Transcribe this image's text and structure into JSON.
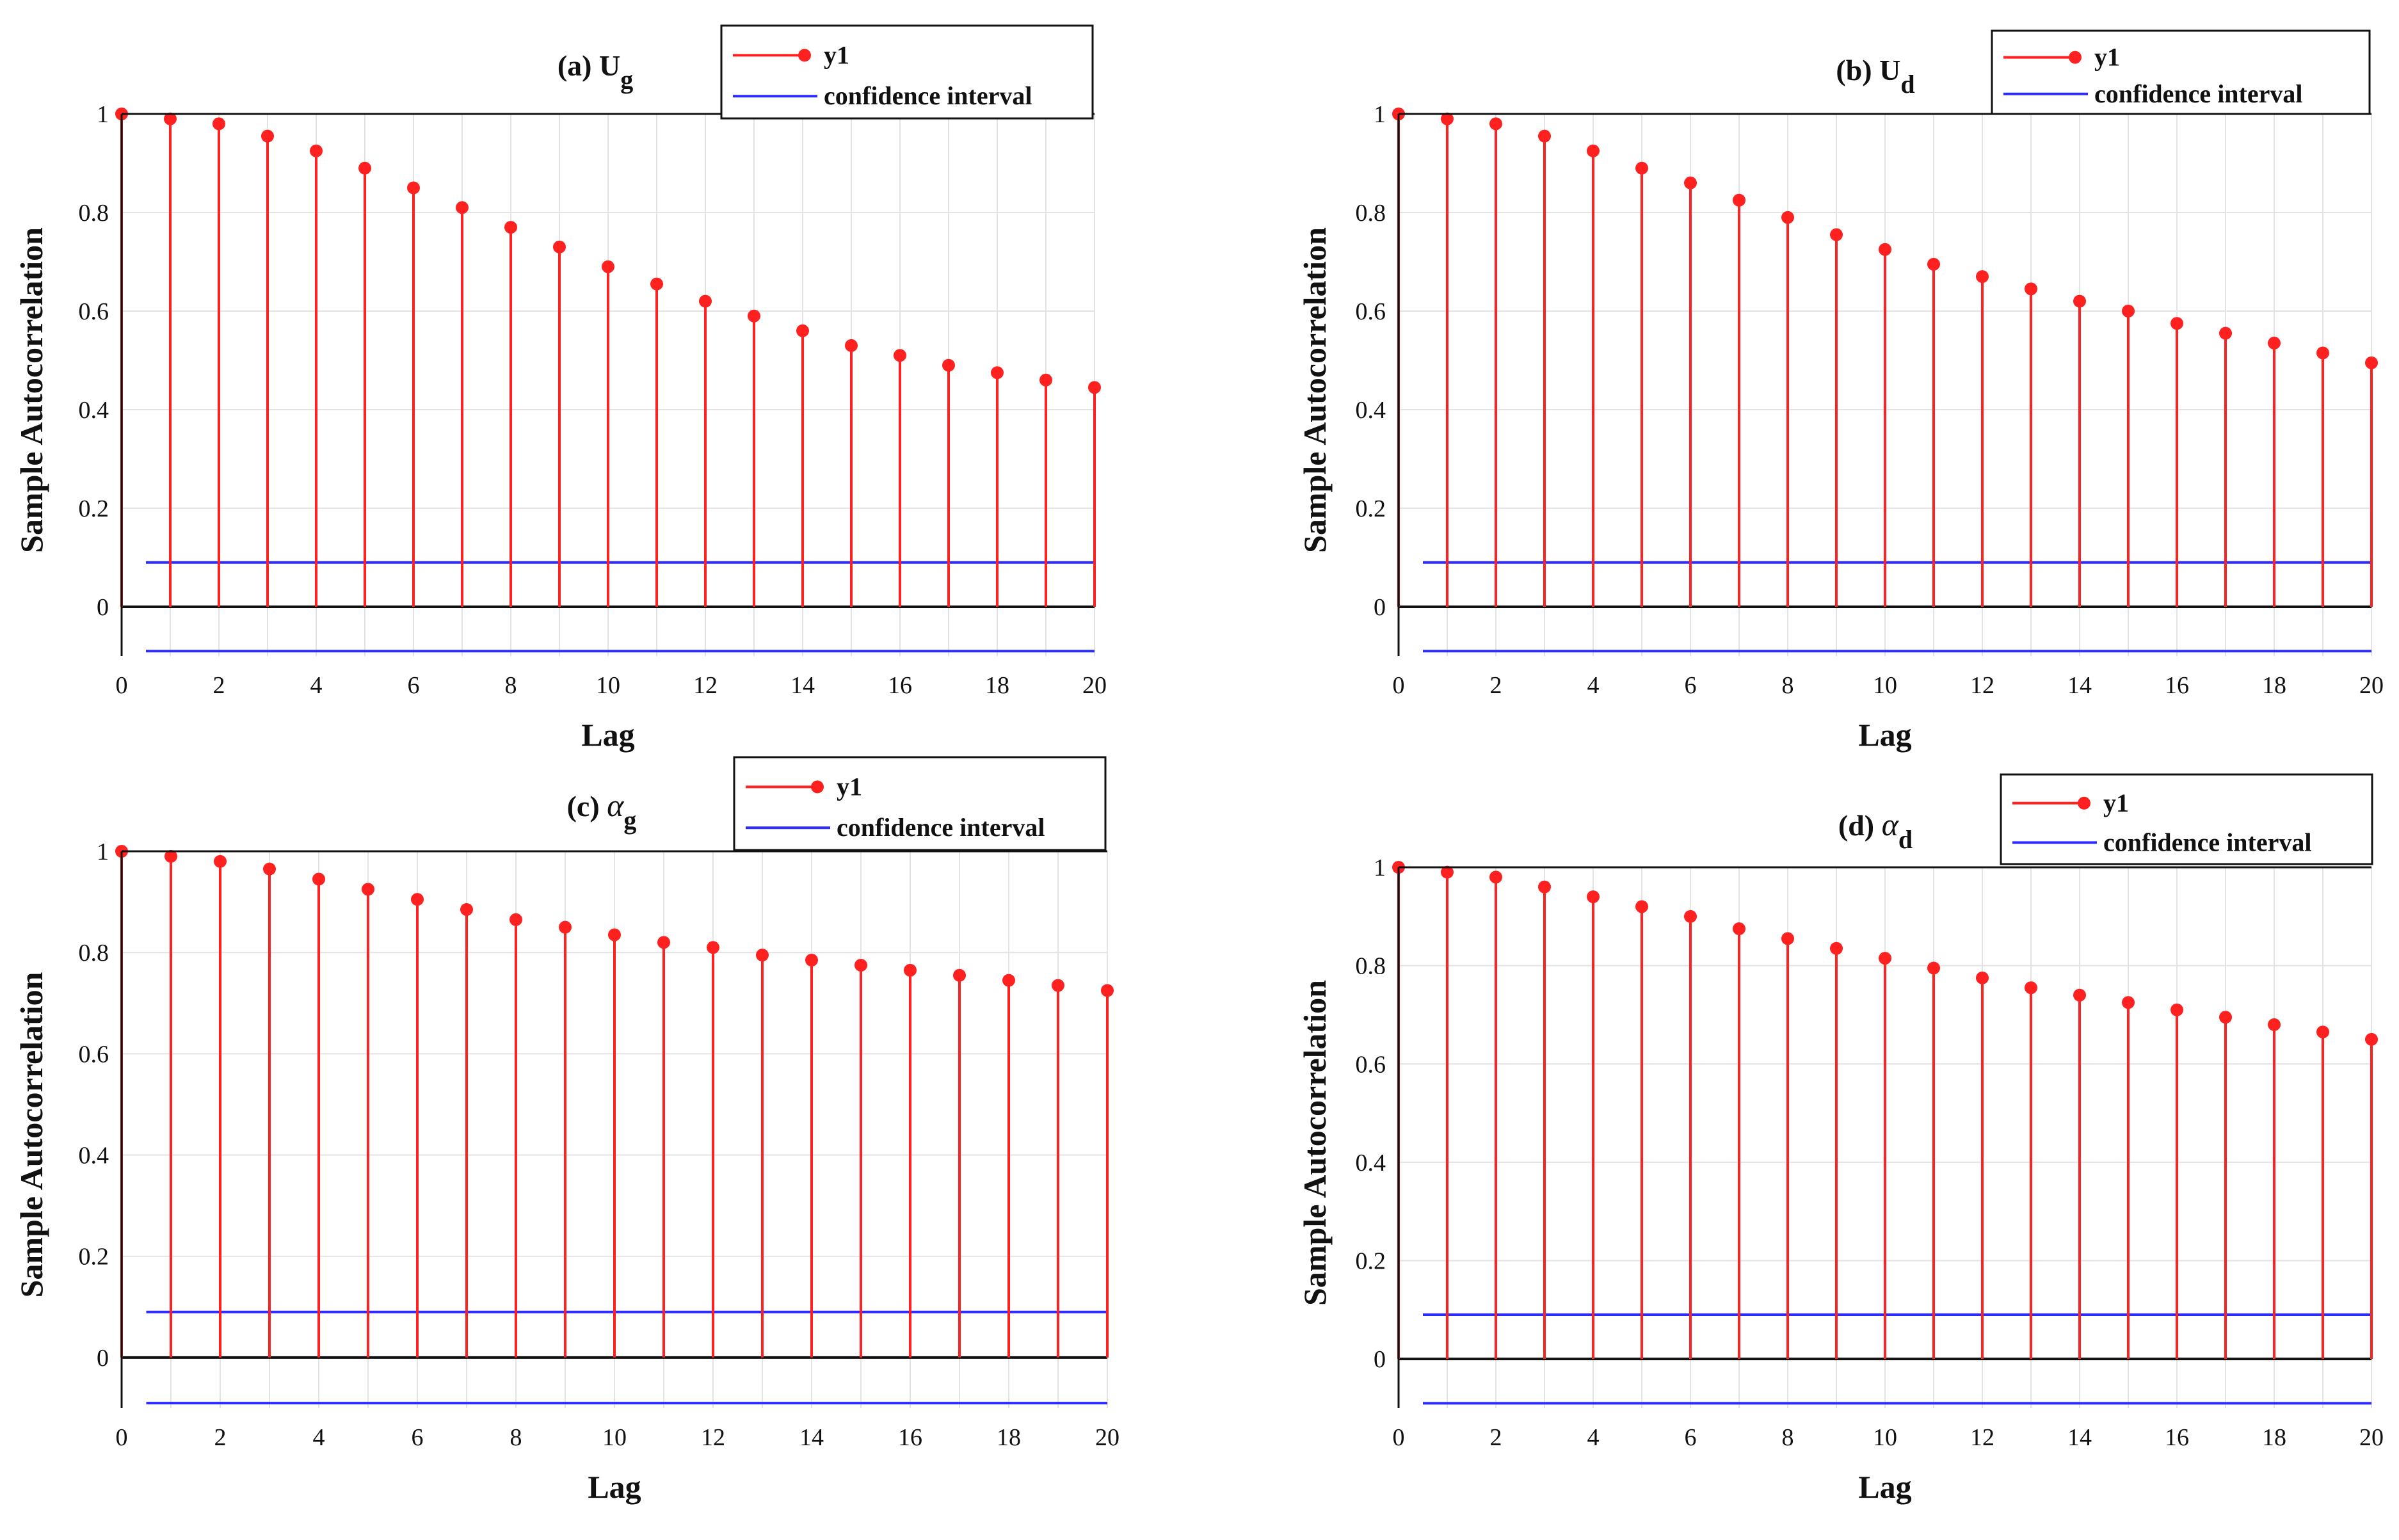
{
  "colors": {
    "series": "#ff2020",
    "confidence": "#2b2bff",
    "axis": "#111111",
    "grid": "#e3e3e3",
    "background": "#ffffff"
  },
  "chart_data": [
    {
      "type": "stem",
      "panel": "a",
      "title": {
        "prefix": "(a)",
        "symbol": "U",
        "subscript": "g",
        "symbol_style": "roman"
      },
      "xlabel": "Lag",
      "ylabel": "Sample Autocorrelation",
      "xlim": [
        0,
        20
      ],
      "ylim": [
        -0.1,
        1
      ],
      "xticks": [
        "0",
        "2",
        "4",
        "6",
        "8",
        "10",
        "12",
        "14",
        "16",
        "18",
        "20"
      ],
      "yticks": [
        "0",
        "0.2",
        "0.4",
        "0.6",
        "0.8",
        "1"
      ],
      "x": [
        0,
        1,
        2,
        3,
        4,
        5,
        6,
        7,
        8,
        9,
        10,
        11,
        12,
        13,
        14,
        15,
        16,
        17,
        18,
        19,
        20
      ],
      "series": [
        {
          "name": "y1",
          "values": [
            1.0,
            0.99,
            0.98,
            0.955,
            0.925,
            0.89,
            0.85,
            0.81,
            0.77,
            0.73,
            0.69,
            0.655,
            0.62,
            0.59,
            0.56,
            0.53,
            0.51,
            0.49,
            0.475,
            0.46,
            0.445
          ]
        }
      ],
      "confidence_interval": {
        "label": "confidence interval",
        "upper": 0.09,
        "lower": -0.09
      },
      "legend": [
        "y1",
        "confidence interval"
      ],
      "grid": true
    },
    {
      "type": "stem",
      "panel": "b",
      "title": {
        "prefix": "(b)",
        "symbol": "U",
        "subscript": "d",
        "symbol_style": "roman"
      },
      "xlabel": "Lag",
      "ylabel": "Sample Autocorrelation",
      "xlim": [
        0,
        20
      ],
      "ylim": [
        -0.1,
        1
      ],
      "xticks": [
        "0",
        "2",
        "4",
        "6",
        "8",
        "10",
        "12",
        "14",
        "16",
        "18",
        "20"
      ],
      "yticks": [
        "0",
        "0.2",
        "0.4",
        "0.6",
        "0.8",
        "1"
      ],
      "x": [
        0,
        1,
        2,
        3,
        4,
        5,
        6,
        7,
        8,
        9,
        10,
        11,
        12,
        13,
        14,
        15,
        16,
        17,
        18,
        19,
        20
      ],
      "series": [
        {
          "name": "y1",
          "values": [
            1.0,
            0.99,
            0.98,
            0.955,
            0.925,
            0.89,
            0.86,
            0.825,
            0.79,
            0.755,
            0.725,
            0.695,
            0.67,
            0.645,
            0.62,
            0.6,
            0.575,
            0.555,
            0.535,
            0.515,
            0.495
          ]
        }
      ],
      "confidence_interval": {
        "label": "confidence interval",
        "upper": 0.09,
        "lower": -0.09
      },
      "legend": [
        "y1",
        "confidence interval"
      ],
      "grid": true
    },
    {
      "type": "stem",
      "panel": "c",
      "title": {
        "prefix": "(c)",
        "symbol": "α",
        "subscript": "g",
        "symbol_style": "italic"
      },
      "xlabel": "Lag",
      "ylabel": "Sample Autocorrelation",
      "xlim": [
        0,
        20
      ],
      "ylim": [
        -0.1,
        1
      ],
      "xticks": [
        "0",
        "2",
        "4",
        "6",
        "8",
        "10",
        "12",
        "14",
        "16",
        "18",
        "20"
      ],
      "yticks": [
        "0",
        "0.2",
        "0.4",
        "0.6",
        "0.8",
        "1"
      ],
      "x": [
        0,
        1,
        2,
        3,
        4,
        5,
        6,
        7,
        8,
        9,
        10,
        11,
        12,
        13,
        14,
        15,
        16,
        17,
        18,
        19,
        20
      ],
      "series": [
        {
          "name": "y1",
          "values": [
            1.0,
            0.99,
            0.98,
            0.965,
            0.945,
            0.925,
            0.905,
            0.885,
            0.865,
            0.85,
            0.835,
            0.82,
            0.81,
            0.795,
            0.785,
            0.775,
            0.765,
            0.755,
            0.745,
            0.735,
            0.725
          ]
        }
      ],
      "confidence_interval": {
        "label": "confidence interval",
        "upper": 0.09,
        "lower": -0.09
      },
      "legend": [
        "y1",
        "confidence interval"
      ],
      "grid": true
    },
    {
      "type": "stem",
      "panel": "d",
      "title": {
        "prefix": "(d)",
        "symbol": "α",
        "subscript": "d",
        "symbol_style": "italic"
      },
      "xlabel": "Lag",
      "ylabel": "Sample Autocorrelation",
      "xlim": [
        0,
        20
      ],
      "ylim": [
        -0.1,
        1
      ],
      "xticks": [
        "0",
        "2",
        "4",
        "6",
        "8",
        "10",
        "12",
        "14",
        "16",
        "18",
        "20"
      ],
      "yticks": [
        "0",
        "0.2",
        "0.4",
        "0.6",
        "0.8",
        "1"
      ],
      "x": [
        0,
        1,
        2,
        3,
        4,
        5,
        6,
        7,
        8,
        9,
        10,
        11,
        12,
        13,
        14,
        15,
        16,
        17,
        18,
        19,
        20
      ],
      "series": [
        {
          "name": "y1",
          "values": [
            1.0,
            0.99,
            0.98,
            0.96,
            0.94,
            0.92,
            0.9,
            0.875,
            0.855,
            0.835,
            0.815,
            0.795,
            0.775,
            0.755,
            0.74,
            0.725,
            0.71,
            0.695,
            0.68,
            0.665,
            0.65
          ]
        }
      ],
      "confidence_interval": {
        "label": "confidence interval",
        "upper": 0.09,
        "lower": -0.09
      },
      "legend": [
        "y1",
        "confidence interval"
      ],
      "grid": true
    }
  ]
}
